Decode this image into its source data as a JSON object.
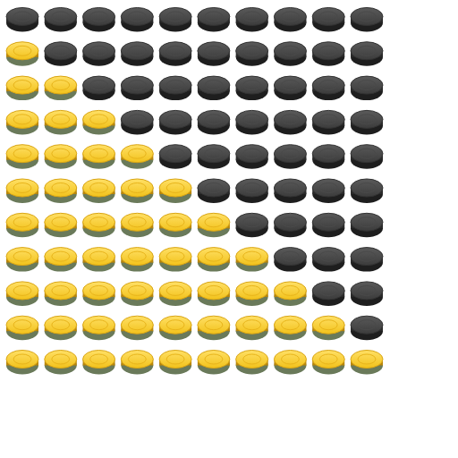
{
  "chart_data": {
    "type": "pictograph",
    "values": [
      0,
      1,
      2,
      3,
      4,
      5,
      6,
      7,
      8,
      9,
      10
    ],
    "xlim": [
      0,
      10
    ],
    "color": "#f2c21b",
    "tick_labels": false
  }
}
